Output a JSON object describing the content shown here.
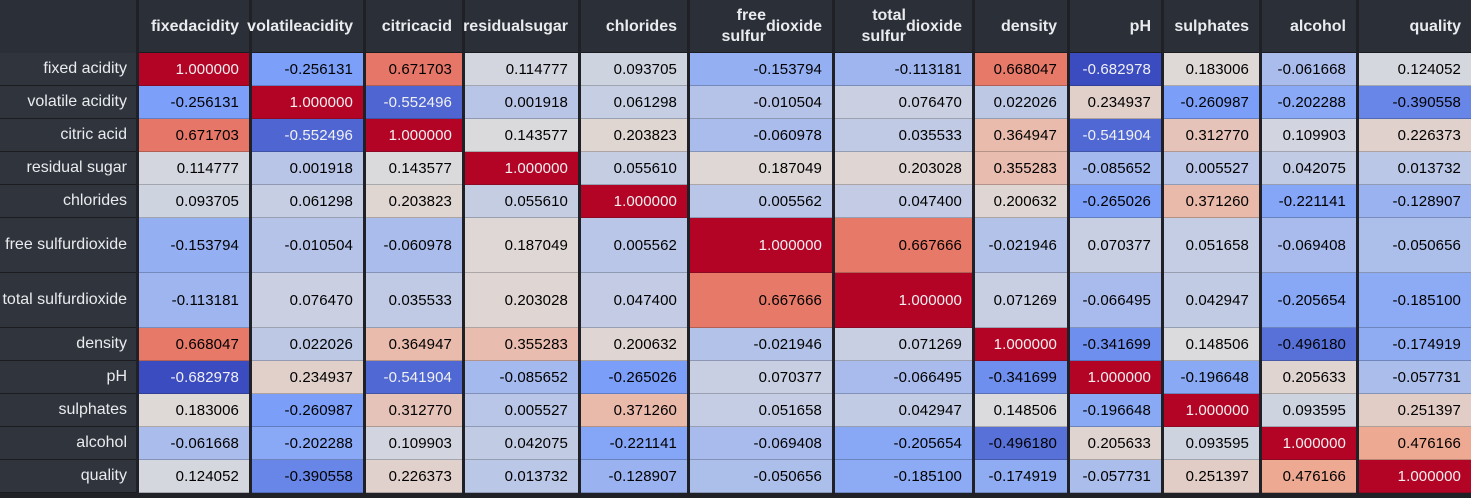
{
  "chart_data": {
    "type": "heatmap",
    "colormap": "coolwarm",
    "vmin": -0.682978,
    "vmax": 1.0,
    "colors": {
      "low": "#3b4cc0",
      "mid": "#dddcdc",
      "high": "#b40426"
    },
    "columns": [
      [
        "fixed",
        "acidity"
      ],
      [
        "volatile",
        "acidity"
      ],
      [
        "citric",
        "acid"
      ],
      [
        "residual",
        "sugar"
      ],
      [
        "chlorides"
      ],
      [
        "free sulfur",
        "dioxide"
      ],
      [
        "total sulfur",
        "dioxide"
      ],
      [
        "density"
      ],
      [
        "pH"
      ],
      [
        "sulphates"
      ],
      [
        "alcohol"
      ],
      [
        "quality"
      ]
    ],
    "rows": [
      [
        "fixed acidity"
      ],
      [
        "volatile acidity"
      ],
      [
        "citric acid"
      ],
      [
        "residual sugar"
      ],
      [
        "chlorides"
      ],
      [
        "free sulfur",
        "dioxide"
      ],
      [
        "total sulfur",
        "dioxide"
      ],
      [
        "density"
      ],
      [
        "pH"
      ],
      [
        "sulphates"
      ],
      [
        "alcohol"
      ],
      [
        "quality"
      ]
    ],
    "values": [
      [
        1.0,
        -0.256131,
        0.671703,
        0.114777,
        0.093705,
        -0.153794,
        -0.113181,
        0.668047,
        -0.682978,
        0.183006,
        -0.061668,
        0.124052
      ],
      [
        -0.256131,
        1.0,
        -0.552496,
        0.001918,
        0.061298,
        -0.010504,
        0.07647,
        0.022026,
        0.234937,
        -0.260987,
        -0.202288,
        -0.390558
      ],
      [
        0.671703,
        -0.552496,
        1.0,
        0.143577,
        0.203823,
        -0.060978,
        0.035533,
        0.364947,
        -0.541904,
        0.31277,
        0.109903,
        0.226373
      ],
      [
        0.114777,
        0.001918,
        0.143577,
        1.0,
        0.05561,
        0.187049,
        0.203028,
        0.355283,
        -0.085652,
        0.005527,
        0.042075,
        0.013732
      ],
      [
        0.093705,
        0.061298,
        0.203823,
        0.05561,
        1.0,
        0.005562,
        0.0474,
        0.200632,
        -0.265026,
        0.37126,
        -0.221141,
        -0.128907
      ],
      [
        -0.153794,
        -0.010504,
        -0.060978,
        0.187049,
        0.005562,
        1.0,
        0.667666,
        -0.021946,
        0.070377,
        0.051658,
        -0.069408,
        -0.050656
      ],
      [
        -0.113181,
        0.07647,
        0.035533,
        0.203028,
        0.0474,
        0.667666,
        1.0,
        0.071269,
        -0.066495,
        0.042947,
        -0.205654,
        -0.1851
      ],
      [
        0.668047,
        0.022026,
        0.364947,
        0.355283,
        0.200632,
        -0.021946,
        0.071269,
        1.0,
        -0.341699,
        0.148506,
        -0.49618,
        -0.174919
      ],
      [
        -0.682978,
        0.234937,
        -0.541904,
        -0.085652,
        -0.265026,
        0.070377,
        -0.066495,
        -0.341699,
        1.0,
        -0.196648,
        0.205633,
        -0.057731
      ],
      [
        0.183006,
        -0.260987,
        0.31277,
        0.005527,
        0.37126,
        0.051658,
        0.042947,
        0.148506,
        -0.196648,
        1.0,
        0.093595,
        0.251397
      ],
      [
        -0.061668,
        -0.202288,
        0.109903,
        0.042075,
        -0.221141,
        -0.069408,
        -0.205654,
        -0.49618,
        0.205633,
        0.093595,
        1.0,
        0.476166
      ],
      [
        0.124052,
        -0.390558,
        0.226373,
        0.013732,
        -0.128907,
        -0.050656,
        -0.1851,
        -0.174919,
        -0.057731,
        0.251397,
        0.476166,
        1.0
      ]
    ]
  }
}
